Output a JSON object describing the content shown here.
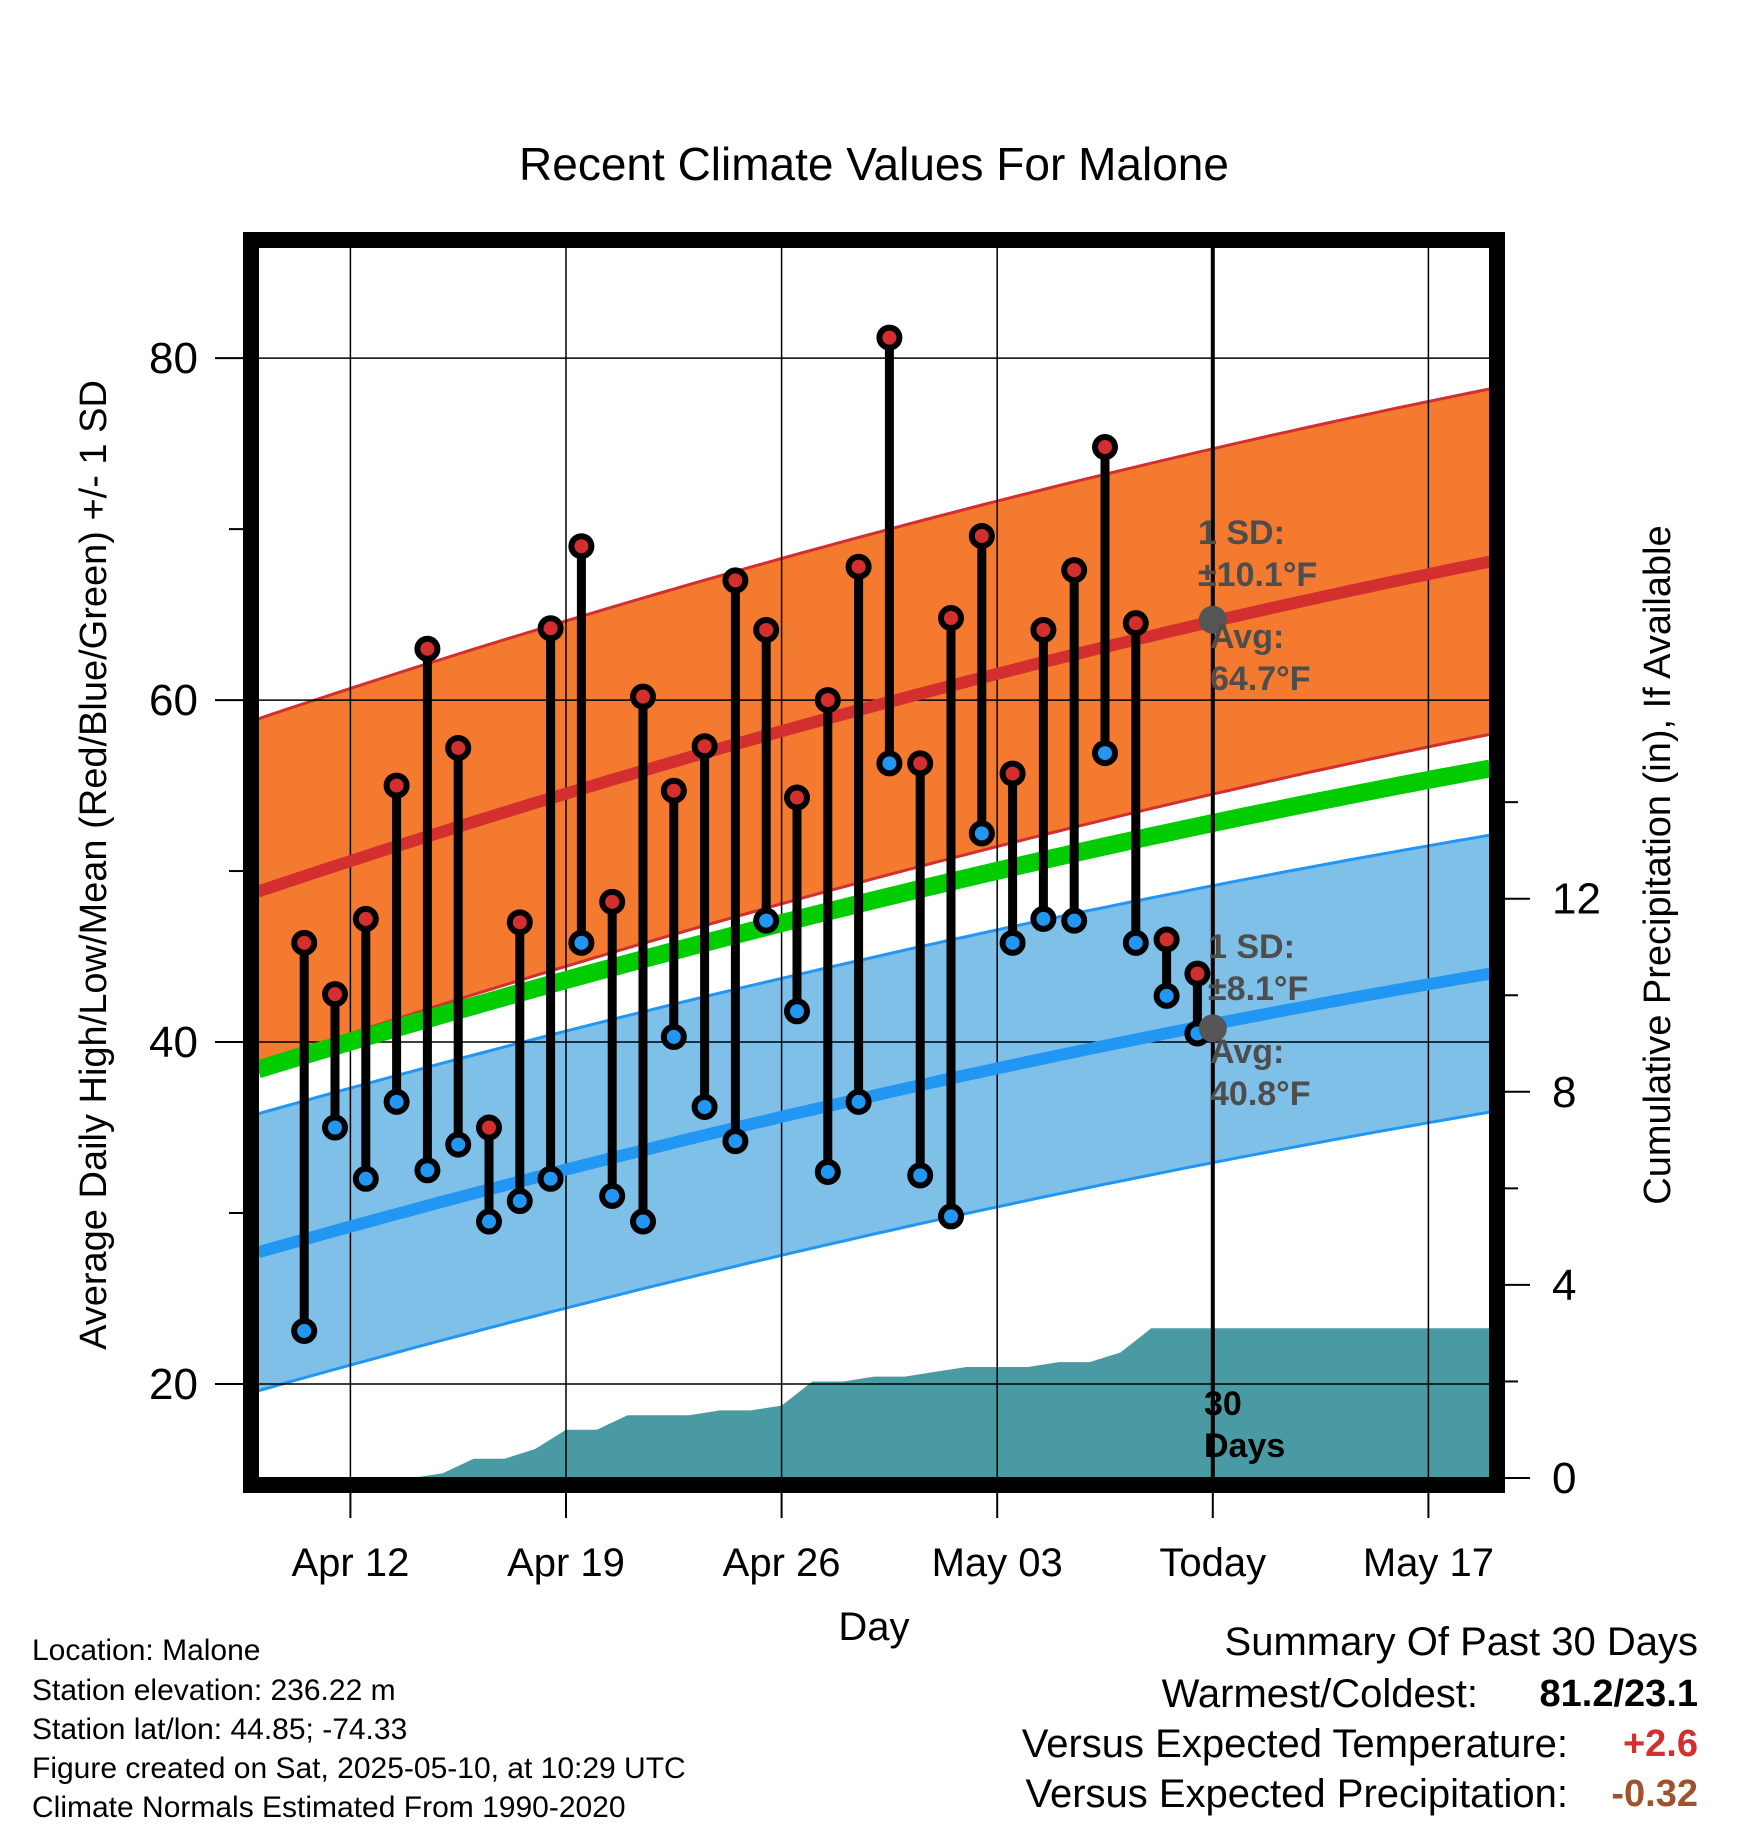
{
  "chart_data": {
    "type": "line",
    "title": "Recent Climate Values For Malone",
    "xlabel": "Day",
    "ylabel_left": "Average Daily High/Low/Mean (Red/Blue/Green) +/- 1 SD",
    "ylabel_right": "Cumulative Precipitation (in), If Available",
    "ylim_left": [
      14.5,
      86.5
    ],
    "yticks_left": [
      20,
      40,
      60,
      80
    ],
    "ylim_right": [
      0,
      25.5
    ],
    "yticks_right": [
      0,
      4,
      8,
      12
    ],
    "x_tick_labels": [
      "Apr 12",
      "Apr 19",
      "Apr 26",
      "May 03",
      "Today",
      "May 17"
    ],
    "x_tick_dates": [
      "2025-04-12",
      "2025-04-19",
      "2025-04-26",
      "2025-05-03",
      "2025-05-10",
      "2025-05-17"
    ],
    "xlim": [
      "2025-04-09",
      "2025-05-19"
    ],
    "today": "2025-05-10",
    "grid": true,
    "days": [
      "2025-04-10",
      "2025-04-11",
      "2025-04-12",
      "2025-04-13",
      "2025-04-14",
      "2025-04-15",
      "2025-04-16",
      "2025-04-17",
      "2025-04-18",
      "2025-04-19",
      "2025-04-20",
      "2025-04-21",
      "2025-04-22",
      "2025-04-23",
      "2025-04-24",
      "2025-04-25",
      "2025-04-26",
      "2025-04-27",
      "2025-04-28",
      "2025-04-29",
      "2025-04-30",
      "2025-05-01",
      "2025-05-02",
      "2025-05-03",
      "2025-05-04",
      "2025-05-05",
      "2025-05-06",
      "2025-05-07",
      "2025-05-08",
      "2025-05-09"
    ],
    "series": [
      {
        "name": "High",
        "color": "#d32f2f",
        "values": [
          45.8,
          42.8,
          47.2,
          55.0,
          63.0,
          57.2,
          35.0,
          47.0,
          64.2,
          69.0,
          48.2,
          60.2,
          54.7,
          57.3,
          67.0,
          64.1,
          54.3,
          60.0,
          67.8,
          81.2,
          56.3,
          64.8,
          69.6,
          55.7,
          64.1,
          67.6,
          74.8,
          64.5,
          46.0,
          44.0
        ]
      },
      {
        "name": "Low",
        "color": "#2196f3",
        "values": [
          23.1,
          35.0,
          32.0,
          36.5,
          32.5,
          34.0,
          29.5,
          30.7,
          32.0,
          45.8,
          31.0,
          29.5,
          40.3,
          36.2,
          34.2,
          47.1,
          41.8,
          32.4,
          36.5,
          56.3,
          32.2,
          29.8,
          52.2,
          45.8,
          47.2,
          47.1,
          56.9,
          45.8,
          42.7,
          40.5
        ]
      }
    ],
    "normals": {
      "normal_high": {
        "x": [
          "2025-04-09",
          "2025-05-19"
        ],
        "values": [
          48.8,
          68.1
        ]
      },
      "normal_mean": {
        "x": [
          "2025-04-09",
          "2025-05-19"
        ],
        "values": [
          38.4,
          56.0
        ]
      },
      "normal_low": {
        "x": [
          "2025-04-09",
          "2025-05-19"
        ],
        "values": [
          27.7,
          44.0
        ]
      },
      "high_sd": 10.1,
      "low_sd": 8.1
    },
    "precipitation": {
      "x": [
        "2025-04-09",
        "2025-04-13",
        "2025-04-14",
        "2025-04-15",
        "2025-04-16",
        "2025-04-17",
        "2025-04-18",
        "2025-04-19",
        "2025-04-20",
        "2025-04-21",
        "2025-04-22",
        "2025-04-23",
        "2025-04-24",
        "2025-04-25",
        "2025-04-26",
        "2025-04-27",
        "2025-04-28",
        "2025-04-29",
        "2025-04-30",
        "2025-05-01",
        "2025-05-02",
        "2025-05-03",
        "2025-05-04",
        "2025-05-05",
        "2025-05-06",
        "2025-05-07",
        "2025-05-08",
        "2025-05-09",
        "2025-05-19"
      ],
      "values": [
        0,
        0,
        0,
        0.1,
        0.4,
        0.4,
        0.6,
        1.0,
        1.0,
        1.3,
        1.3,
        1.3,
        1.4,
        1.4,
        1.5,
        2.0,
        2.0,
        2.1,
        2.1,
        2.2,
        2.3,
        2.3,
        2.3,
        2.4,
        2.4,
        2.6,
        3.1,
        3.1,
        3.1
      ],
      "color": "#4a9aa3"
    },
    "annotations": [
      {
        "line1": "1 SD:",
        "line2": "±10.1°F"
      },
      {
        "line1": "Avg:",
        "line2": "64.7°F"
      },
      {
        "line1": "1 SD:",
        "line2": "±8.1°F"
      },
      {
        "line1": "Avg:",
        "line2": "40.8°F"
      },
      {
        "line1": "30",
        "line2": "Days"
      }
    ]
  },
  "info": {
    "location": "Location: Malone",
    "elevation": "Station elevation: 236.22 m",
    "latlon": "Station lat/lon: 44.85; -74.33",
    "created": "Figure created on Sat, 2025-05-10, at 10:29 UTC",
    "normals": "Climate Normals Estimated From 1990-2020"
  },
  "summary": {
    "title": "Summary Of Past 30 Days",
    "warmest_label": "Warmest/Coldest:",
    "warmest_value": "81.2/23.1",
    "temp_label": "Versus Expected Temperature:",
    "temp_value": "+2.6",
    "temp_color": "#d32f2f",
    "precip_label": "Versus Expected Precipitation:",
    "precip_value": "-0.32",
    "precip_color": "#a0522d"
  }
}
